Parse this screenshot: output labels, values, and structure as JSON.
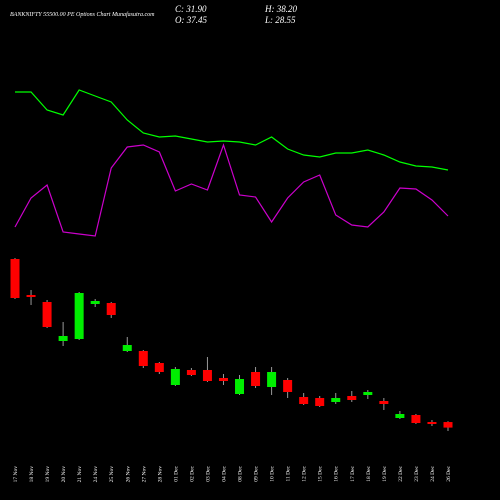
{
  "chart_data": {
    "type": "candlestick",
    "title": "BANKNIFTY 55500.00 PE Options Chart Munafasutra.com",
    "summary": [
      "C: 31.90",
      "H: 38.20",
      "O: 37.45",
      "L: 28.55"
    ],
    "categories": [
      "17 Nov",
      "18 Nov",
      "19 Nov",
      "20 Nov",
      "21 Nov",
      "24 Nov",
      "25 Nov",
      "26 Nov",
      "27 Nov",
      "28 Nov",
      "01 Dec",
      "02 Dec",
      "03 Dec",
      "04 Dec",
      "08 Dec",
      "09 Dec",
      "10 Dec",
      "11 Dec",
      "12 Dec",
      "15 Dec",
      "16 Dec",
      "17 Dec",
      "18 Dec",
      "19 Dec",
      "22 Dec",
      "23 Dec",
      "24 Dec",
      "26 Dec"
    ],
    "open": [
      200.5,
      164.5,
      157.5,
      118.5,
      120.5,
      155.5,
      156.5,
      108.5,
      108.5,
      96.5,
      74.5,
      89.5,
      89.5,
      81.5,
      65.5,
      87.5,
      72.5,
      79.5,
      62.5,
      61.5,
      57.5,
      63.5,
      64.5,
      58.5,
      41.5,
      44.5,
      37.5,
      37.45
    ],
    "high": [
      201.5,
      169.5,
      159.5,
      137.5,
      167.5,
      160.5,
      157.5,
      122.5,
      109.5,
      97.5,
      92.5,
      91.5,
      102.5,
      85.5,
      84.5,
      92.5,
      92.5,
      81.5,
      66.5,
      63.5,
      66.5,
      68.5,
      69.5,
      61.5,
      48.5,
      45.5,
      39.5,
      38.2
    ],
    "low": [
      160.5,
      154.5,
      131.5,
      113.5,
      119.5,
      152.5,
      141.5,
      107.5,
      91.5,
      85.5,
      73.5,
      83.5,
      77.5,
      74.5,
      64.5,
      71.5,
      64.5,
      61.5,
      54.5,
      52.5,
      55.5,
      57.5,
      60.5,
      49.5,
      40.5,
      35.5,
      33.5,
      28.55
    ],
    "close": [
      161.5,
      162.5,
      132.5,
      123.5,
      166.5,
      158.5,
      144.5,
      114.5,
      93.5,
      87.5,
      90.5,
      84.5,
      78.5,
      78.5,
      80.5,
      73.5,
      87.5,
      67.5,
      55.5,
      53.5,
      61.5,
      59.5,
      67.5,
      55.5,
      45.5,
      36.5,
      35.5,
      31.9
    ],
    "up_color": "#00ee00",
    "down_color": "#ff0000",
    "lines": [
      {
        "color": "#00ff00",
        "values": [
          367.5,
          367.5,
          349.5,
          344.5,
          369.5,
          363.5,
          357.5,
          339.5,
          326.5,
          322.5,
          323.5,
          320.5,
          317.5,
          318.5,
          317.5,
          314.5,
          322.5,
          310.5,
          304.5,
          302.5,
          306.5,
          306.5,
          309.5,
          304.5,
          297.5,
          293.5,
          292.5,
          289.5
        ]
      },
      {
        "color": "#cc00cc",
        "values": [
          232.5,
          261.5,
          274.5,
          227.5,
          225.5,
          223.5,
          291.5,
          312.5,
          314.5,
          307.5,
          268.5,
          275.5,
          269.5,
          314.5,
          264.5,
          262.5,
          237.5,
          261.5,
          277.5,
          284.5,
          244.5,
          234.5,
          232.5,
          247.5,
          271.5,
          270.5,
          259.5,
          243.5
        ]
      }
    ],
    "ylim": [
      0,
      459.5
    ]
  }
}
